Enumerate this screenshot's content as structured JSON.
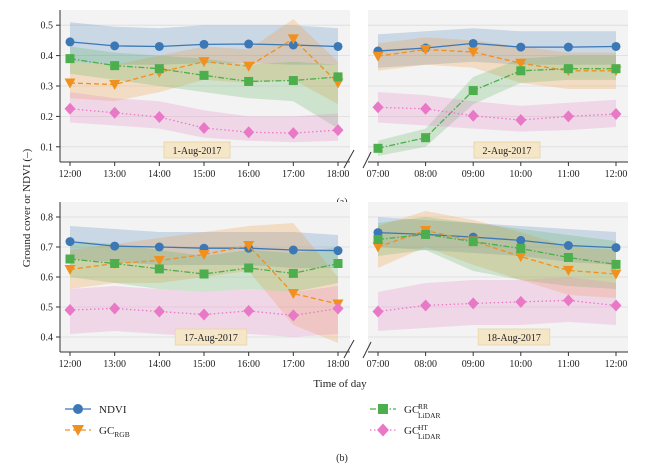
{
  "figure": {
    "ylabel": "Ground cover or NDVI (–)",
    "xlabel": "Time of day",
    "panel_a": "(a)",
    "panel_b": "(b)",
    "legend": [
      {
        "name": "NDVI",
        "sub": "",
        "sup": "",
        "color": "#3b78b5",
        "marker": "circle",
        "dash": "solid"
      },
      {
        "name": "GC",
        "sub": "RGB",
        "sup": "",
        "color": "#f0901e",
        "marker": "triangle-down",
        "dash": "dashed"
      },
      {
        "name": "GC",
        "sub": "LiDAR",
        "sup": "RR",
        "color": "#4cae4c",
        "marker": "square",
        "dash": "dashdot"
      },
      {
        "name": "GC",
        "sub": "LiDAR",
        "sup": "HT",
        "color": "#e978c6",
        "marker": "diamond",
        "dash": "dotted"
      }
    ],
    "colors": {
      "ndvi": "#3b78b5",
      "rgb": "#f0901e",
      "rr": "#4cae4c",
      "ht": "#e978c6",
      "date_box": "#f5e6c8"
    }
  },
  "chart_data": [
    {
      "type": "line",
      "date": "1-Aug-2017",
      "ylim": [
        0.05,
        0.55
      ],
      "yticks": [
        "0.1",
        "0.2",
        "0.3",
        "0.4",
        "0.5"
      ],
      "x": [
        "12:00",
        "13:00",
        "14:00",
        "15:00",
        "16:00",
        "17:00",
        "18:00"
      ],
      "series": [
        {
          "name": "NDVI",
          "values": [
            0.445,
            0.432,
            0.43,
            0.437,
            0.438,
            0.435,
            0.43
          ],
          "lower": [
            0.38,
            0.37,
            0.37,
            0.375,
            0.375,
            0.37,
            0.37
          ],
          "upper": [
            0.51,
            0.495,
            0.49,
            0.5,
            0.5,
            0.5,
            0.49
          ]
        },
        {
          "name": "GC_RGB",
          "values": [
            0.31,
            0.305,
            0.345,
            0.38,
            0.365,
            0.455,
            0.31
          ],
          "lower": [
            0.26,
            0.25,
            0.28,
            0.32,
            0.31,
            0.32,
            0.24
          ],
          "upper": [
            0.38,
            0.37,
            0.4,
            0.43,
            0.42,
            0.52,
            0.38
          ]
        },
        {
          "name": "GC_LiDAR_RR",
          "values": [
            0.39,
            0.367,
            0.357,
            0.335,
            0.315,
            0.318,
            0.33
          ],
          "lower": [
            0.34,
            0.32,
            0.3,
            0.28,
            0.26,
            0.25,
            0.16
          ],
          "upper": [
            0.43,
            0.41,
            0.4,
            0.39,
            0.37,
            0.38,
            0.37
          ]
        },
        {
          "name": "GC_LiDAR_HT",
          "values": [
            0.225,
            0.212,
            0.198,
            0.162,
            0.148,
            0.145,
            0.155
          ],
          "lower": [
            0.18,
            0.17,
            0.16,
            0.13,
            0.12,
            0.115,
            0.12
          ],
          "upper": [
            0.28,
            0.26,
            0.25,
            0.22,
            0.2,
            0.2,
            0.21
          ]
        }
      ]
    },
    {
      "type": "line",
      "date": "2-Aug-2017",
      "ylim": [
        0.05,
        0.55
      ],
      "x": [
        "07:00",
        "08:00",
        "09:00",
        "10:00",
        "11:00",
        "12:00"
      ],
      "series": [
        {
          "name": "NDVI",
          "values": [
            0.415,
            0.425,
            0.44,
            0.428,
            0.428,
            0.43
          ],
          "lower": [
            0.36,
            0.37,
            0.38,
            0.37,
            0.37,
            0.37
          ],
          "upper": [
            0.47,
            0.48,
            0.49,
            0.48,
            0.48,
            0.48
          ]
        },
        {
          "name": "GC_RGB",
          "values": [
            0.398,
            0.42,
            0.412,
            0.375,
            0.35,
            0.35
          ],
          "lower": [
            0.35,
            0.37,
            0.36,
            0.31,
            0.29,
            0.29
          ],
          "upper": [
            0.44,
            0.46,
            0.45,
            0.43,
            0.41,
            0.41
          ]
        },
        {
          "name": "GC_LiDAR_RR",
          "values": [
            0.095,
            0.13,
            0.285,
            0.35,
            0.357,
            0.357
          ],
          "lower": [
            0.07,
            0.1,
            0.24,
            0.31,
            0.32,
            0.32
          ],
          "upper": [
            0.12,
            0.16,
            0.33,
            0.39,
            0.4,
            0.4
          ]
        },
        {
          "name": "GC_LiDAR_HT",
          "values": [
            0.23,
            0.225,
            0.202,
            0.188,
            0.2,
            0.208
          ],
          "lower": [
            0.18,
            0.17,
            0.16,
            0.15,
            0.155,
            0.165
          ],
          "upper": [
            0.28,
            0.27,
            0.25,
            0.235,
            0.245,
            0.255
          ]
        }
      ]
    },
    {
      "type": "line",
      "date": "17-Aug-2017",
      "ylim": [
        0.35,
        0.85
      ],
      "yticks": [
        "0.4",
        "0.5",
        "0.6",
        "0.7",
        "0.8"
      ],
      "x": [
        "12:00",
        "13:00",
        "14:00",
        "15:00",
        "16:00",
        "17:00",
        "18:00"
      ],
      "series": [
        {
          "name": "NDVI",
          "values": [
            0.718,
            0.703,
            0.7,
            0.696,
            0.696,
            0.69,
            0.688
          ],
          "lower": [
            0.66,
            0.65,
            0.64,
            0.64,
            0.64,
            0.63,
            0.63
          ],
          "upper": [
            0.77,
            0.76,
            0.75,
            0.75,
            0.75,
            0.75,
            0.74
          ]
        },
        {
          "name": "GC_RGB",
          "values": [
            0.625,
            0.645,
            0.655,
            0.675,
            0.705,
            0.545,
            0.51
          ],
          "lower": [
            0.56,
            0.58,
            0.58,
            0.6,
            0.62,
            0.44,
            0.38
          ],
          "upper": [
            0.69,
            0.71,
            0.73,
            0.75,
            0.77,
            0.78,
            0.6
          ]
        },
        {
          "name": "GC_LiDAR_RR",
          "values": [
            0.66,
            0.645,
            0.627,
            0.61,
            0.63,
            0.612,
            0.645
          ],
          "lower": [
            0.6,
            0.58,
            0.56,
            0.55,
            0.56,
            0.55,
            0.58
          ],
          "upper": [
            0.72,
            0.71,
            0.69,
            0.67,
            0.69,
            0.68,
            0.7
          ]
        },
        {
          "name": "GC_LiDAR_HT",
          "values": [
            0.49,
            0.495,
            0.485,
            0.475,
            0.487,
            0.472,
            0.495
          ],
          "lower": [
            0.41,
            0.42,
            0.41,
            0.4,
            0.41,
            0.4,
            0.41
          ],
          "upper": [
            0.56,
            0.57,
            0.56,
            0.55,
            0.56,
            0.55,
            0.57
          ]
        }
      ]
    },
    {
      "type": "line",
      "date": "18-Aug-2017",
      "ylim": [
        0.35,
        0.85
      ],
      "x": [
        "07:00",
        "08:00",
        "09:00",
        "10:00",
        "11:00",
        "12:00"
      ],
      "series": [
        {
          "name": "NDVI",
          "values": [
            0.748,
            0.742,
            0.733,
            0.722,
            0.705,
            0.698
          ],
          "lower": [
            0.7,
            0.69,
            0.68,
            0.67,
            0.65,
            0.64
          ],
          "upper": [
            0.8,
            0.79,
            0.78,
            0.77,
            0.76,
            0.75
          ]
        },
        {
          "name": "GC_RGB",
          "values": [
            0.7,
            0.755,
            0.72,
            0.668,
            0.622,
            0.61
          ],
          "lower": [
            0.63,
            0.7,
            0.64,
            0.59,
            0.54,
            0.53
          ],
          "upper": [
            0.77,
            0.82,
            0.79,
            0.75,
            0.7,
            0.69
          ]
        },
        {
          "name": "GC_LiDAR_RR",
          "values": [
            0.725,
            0.742,
            0.718,
            0.695,
            0.665,
            0.642
          ],
          "lower": [
            0.67,
            0.69,
            0.62,
            0.59,
            0.57,
            0.56
          ],
          "upper": [
            0.78,
            0.8,
            0.78,
            0.76,
            0.74,
            0.72
          ]
        },
        {
          "name": "GC_LiDAR_HT",
          "values": [
            0.485,
            0.505,
            0.512,
            0.517,
            0.522,
            0.505
          ],
          "lower": [
            0.42,
            0.43,
            0.44,
            0.44,
            0.45,
            0.44
          ],
          "upper": [
            0.55,
            0.58,
            0.59,
            0.59,
            0.6,
            0.58
          ]
        }
      ]
    }
  ]
}
